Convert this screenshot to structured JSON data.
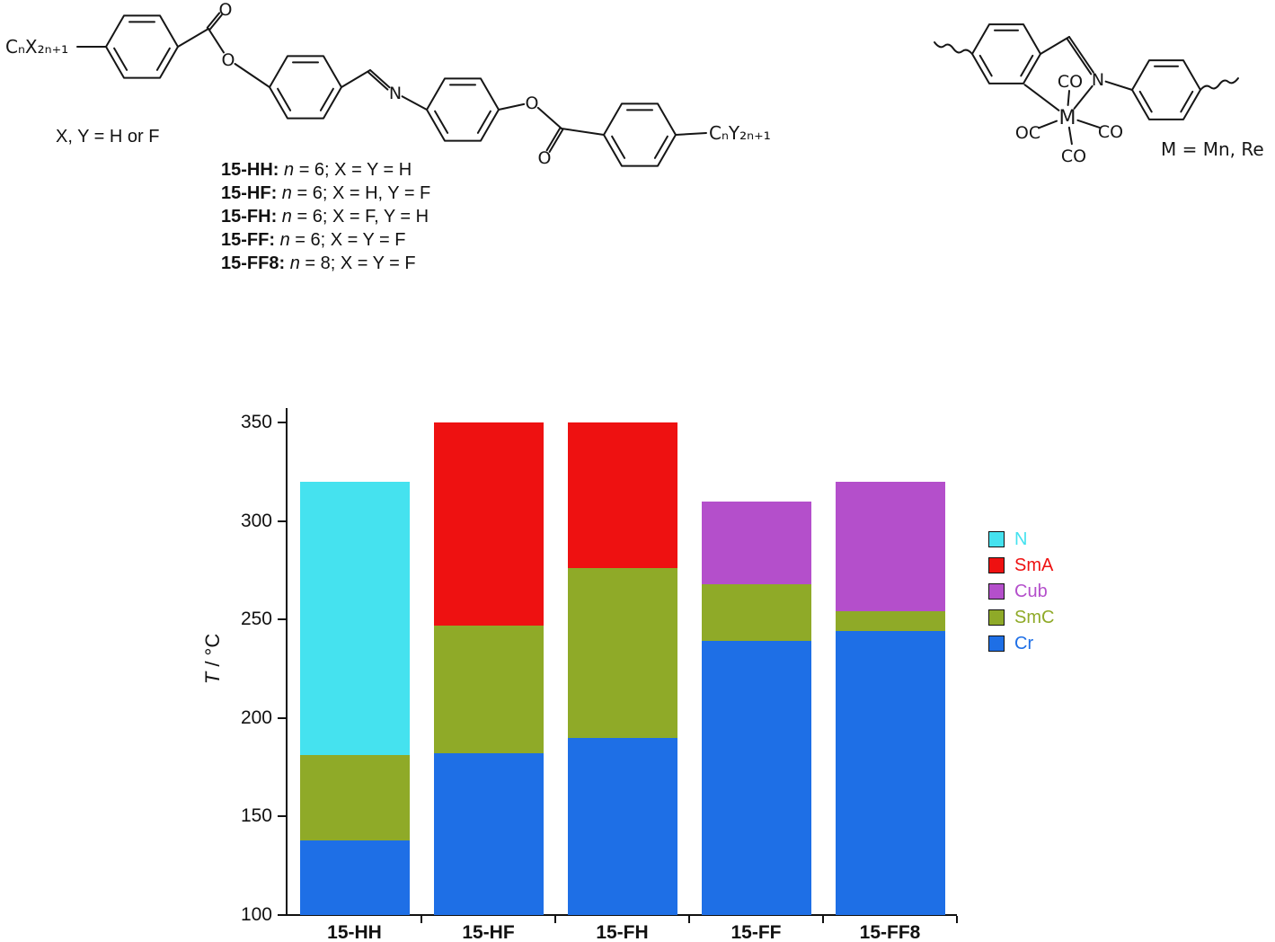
{
  "scheme": {
    "left_molecule": {
      "chain_left": "CₙX₂ₙ₊₁",
      "chain_right": "CₙY₂ₙ₊₁",
      "carbonyl_o_1": "O",
      "ester_o_1": "O",
      "imine_n": "N",
      "ester_o_2": "O",
      "carbonyl_o_2": "O",
      "substituent_note": "X, Y = H or F",
      "compounds": [
        {
          "label": "15-HH:",
          "var": "n",
          "formula": "= 6; X = Y = H"
        },
        {
          "label": "15-HF:",
          "var": "n",
          "formula": "= 6; X = H, Y = F"
        },
        {
          "label": "15-FH:",
          "var": "n",
          "formula": "= 6; X = F, Y = H"
        },
        {
          "label": "15-FF:",
          "var": "n",
          "formula": "= 6; X = Y = F"
        },
        {
          "label": "15-FF8:",
          "var": "n",
          "formula": "= 8; X = Y = F"
        }
      ]
    },
    "right_molecule": {
      "metal": "M",
      "co_top": "CO",
      "co_right": "CO",
      "co_bottom": "CO",
      "oc_left": "OC",
      "imine_n": "N",
      "metal_note": "M = Mn, Re"
    }
  },
  "chart_data": {
    "type": "bar",
    "stacked": true,
    "title": "",
    "xlabel": "",
    "ylabel": "T / °C",
    "ylabel_parts": {
      "symbol": "T",
      "unit": " / °C"
    },
    "ylim": [
      100,
      350
    ],
    "yticks": [
      100,
      150,
      200,
      250,
      300,
      350
    ],
    "grid": false,
    "legend_position": "right",
    "categories": [
      "15-HH",
      "15-HF",
      "15-FH",
      "15-FF",
      "15-FF8"
    ],
    "phases": {
      "N": "#45e2ef",
      "SmA": "#ee1111",
      "Cub": "#b44fcb",
      "SmC": "#8faa28",
      "Cr": "#1e6fe6"
    },
    "bars": [
      {
        "category": "15-HH",
        "segments": [
          {
            "phase": "Cr",
            "from": 100,
            "to": 138
          },
          {
            "phase": "SmC",
            "from": 138,
            "to": 181
          },
          {
            "phase": "N",
            "from": 181,
            "to": 320
          }
        ]
      },
      {
        "category": "15-HF",
        "segments": [
          {
            "phase": "Cr",
            "from": 100,
            "to": 182
          },
          {
            "phase": "SmC",
            "from": 182,
            "to": 247
          },
          {
            "phase": "SmA",
            "from": 247,
            "to": 350
          }
        ]
      },
      {
        "category": "15-FH",
        "segments": [
          {
            "phase": "Cr",
            "from": 100,
            "to": 190
          },
          {
            "phase": "SmC",
            "from": 190,
            "to": 276
          },
          {
            "phase": "SmA",
            "from": 276,
            "to": 350
          }
        ]
      },
      {
        "category": "15-FF",
        "segments": [
          {
            "phase": "Cr",
            "from": 100,
            "to": 239
          },
          {
            "phase": "SmC",
            "from": 239,
            "to": 268
          },
          {
            "phase": "Cub",
            "from": 268,
            "to": 310
          }
        ]
      },
      {
        "category": "15-FF8",
        "segments": [
          {
            "phase": "Cr",
            "from": 100,
            "to": 244
          },
          {
            "phase": "SmC",
            "from": 244,
            "to": 254
          },
          {
            "phase": "Cub",
            "from": 254,
            "to": 320
          }
        ]
      }
    ],
    "legend": [
      {
        "label": "N",
        "color": "#45e2ef"
      },
      {
        "label": "SmA",
        "color": "#ee1111"
      },
      {
        "label": "Cub",
        "color": "#b44fcb"
      },
      {
        "label": "SmC",
        "color": "#8faa28"
      },
      {
        "label": "Cr",
        "color": "#1e6fe6"
      }
    ]
  }
}
